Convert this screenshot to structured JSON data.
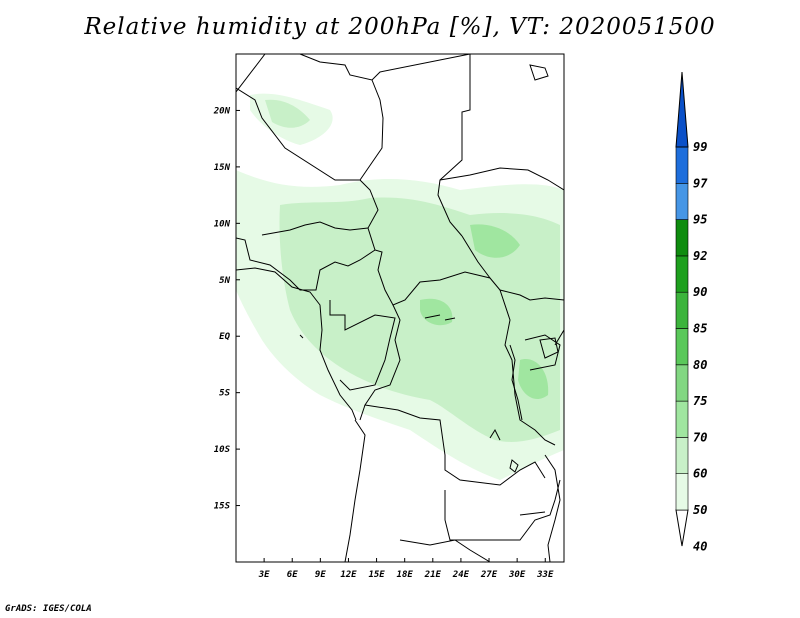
{
  "title": "Relative humidity at 200hPa [%], VT: 2020051500",
  "credit": "GrADS: IGES/COLA",
  "map": {
    "lat_labels": [
      "20N",
      "15N",
      "10N",
      "5N",
      "EQ",
      "5S",
      "10S",
      "15S"
    ],
    "lat_values": [
      20,
      15,
      10,
      5,
      0,
      -5,
      -10,
      -15
    ],
    "lon_labels": [
      "3E",
      "6E",
      "9E",
      "12E",
      "15E",
      "18E",
      "21E",
      "24E",
      "27E",
      "30E",
      "33E"
    ],
    "lon_values": [
      3,
      6,
      9,
      12,
      15,
      18,
      21,
      24,
      27,
      30,
      33
    ],
    "lon_range": [
      0,
      35
    ],
    "lat_range": [
      -20,
      25
    ]
  },
  "colorbar": {
    "levels": [
      "99",
      "97",
      "95",
      "92",
      "90",
      "85",
      "80",
      "75",
      "70",
      "60",
      "50",
      "40"
    ],
    "colors": [
      "#ffffff",
      "#e6fae6",
      "#c8f0c8",
      "#a0e6a0",
      "#82d782",
      "#5ac85a",
      "#3cb43c",
      "#1ea01e",
      "#0f8c0f",
      "#4696e6",
      "#1e6edc",
      "#0a50c8"
    ]
  }
}
